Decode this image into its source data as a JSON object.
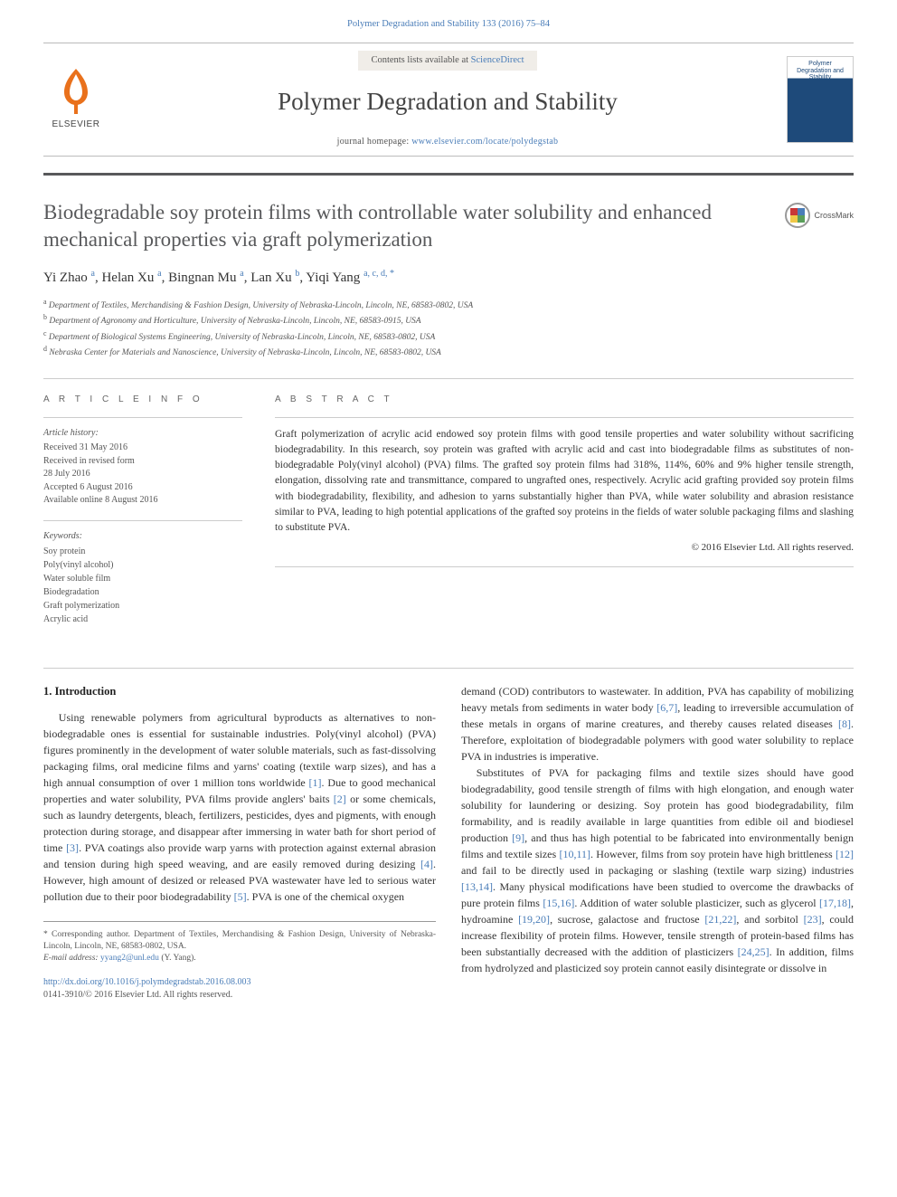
{
  "header": {
    "citation": "Polymer Degradation and Stability 133 (2016) 75–84",
    "contents_prefix": "Contents lists available at ",
    "contents_link": "ScienceDirect",
    "journal_title": "Polymer Degradation and Stability",
    "homepage_prefix": "journal homepage: ",
    "homepage_url": "www.elsevier.com/locate/polydegstab",
    "publisher_word": "ELSEVIER",
    "cover_text": "Polymer Degradation and Stability",
    "crossmark_label": "CrossMark"
  },
  "title": "Biodegradable soy protein films with controllable water solubility and enhanced mechanical properties via graft polymerization",
  "authors_line": "Yi Zhao <sup>a</sup>, Helan Xu <sup>a</sup>, Bingnan Mu <sup>a</sup>, Lan Xu <sup>b</sup>, Yiqi Yang <sup>a, c, d, *</sup>",
  "affiliations": [
    "<sup>a</sup> Department of Textiles, Merchandising & Fashion Design, University of Nebraska-Lincoln, Lincoln, NE, 68583-0802, USA",
    "<sup>b</sup> Department of Agronomy and Horticulture, University of Nebraska-Lincoln, Lincoln, NE, 68583-0915, USA",
    "<sup>c</sup> Department of Biological Systems Engineering, University of Nebraska-Lincoln, Lincoln, NE, 68583-0802, USA",
    "<sup>d</sup> Nebraska Center for Materials and Nanoscience, University of Nebraska-Lincoln, Lincoln, NE, 68583-0802, USA"
  ],
  "article_info": {
    "heading": "A R T I C L E  I N F O",
    "history_label": "Article history:",
    "history_lines": [
      "Received 31 May 2016",
      "Received in revised form",
      "28 July 2016",
      "Accepted 6 August 2016",
      "Available online 8 August 2016"
    ],
    "keywords_label": "Keywords:",
    "keywords": [
      "Soy protein",
      "Poly(vinyl alcohol)",
      "Water soluble film",
      "Biodegradation",
      "Graft polymerization",
      "Acrylic acid"
    ]
  },
  "abstract": {
    "heading": "A B S T R A C T",
    "text": "Graft polymerization of acrylic acid endowed soy protein films with good tensile properties and water solubility without sacrificing biodegradability. In this research, soy protein was grafted with acrylic acid and cast into biodegradable films as substitutes of non-biodegradable Poly(vinyl alcohol) (PVA) films. The grafted soy protein films had 318%, 114%, 60% and 9% higher tensile strength, elongation, dissolving rate and transmittance, compared to ungrafted ones, respectively. Acrylic acid grafting provided soy protein films with biodegradability, flexibility, and adhesion to yarns substantially higher than PVA, while water solubility and abrasion resistance similar to PVA, leading to high potential applications of the grafted soy proteins in the fields of water soluble packaging films and slashing to substitute PVA.",
    "copyright": "© 2016 Elsevier Ltd. All rights reserved."
  },
  "body": {
    "section_heading": "1. Introduction",
    "p1": "Using renewable polymers from agricultural byproducts as alternatives to non-biodegradable ones is essential for sustainable industries. Poly(vinyl alcohol) (PVA) figures prominently in the development of water soluble materials, such as fast-dissolving packaging films, oral medicine films and yarns' coating (textile warp sizes), and has a high annual consumption of over 1 million tons worldwide <span class=\"ref\">[1]</span>. Due to good mechanical properties and water solubility, PVA films provide anglers' baits <span class=\"ref\">[2]</span> or some chemicals, such as laundry detergents, bleach, fertilizers, pesticides, dyes and pigments, with enough protection during storage, and disappear after immersing in water bath for short period of time <span class=\"ref\">[3]</span>. PVA coatings also provide warp yarns with protection against external abrasion and tension during high speed weaving, and are easily removed during desizing <span class=\"ref\">[4]</span>. However, high amount of desized or released PVA wastewater have led to serious water pollution due to their poor biodegradability <span class=\"ref\">[5]</span>. PVA is one of the chemical oxygen",
    "p2": "demand (COD) contributors to wastewater. In addition, PVA has capability of mobilizing heavy metals from sediments in water body <span class=\"ref\">[6,7]</span>, leading to irreversible accumulation of these metals in organs of marine creatures, and thereby causes related diseases <span class=\"ref\">[8]</span>. Therefore, exploitation of biodegradable polymers with good water solubility to replace PVA in industries is imperative.",
    "p3": "Substitutes of PVA for packaging films and textile sizes should have good biodegradability, good tensile strength of films with high elongation, and enough water solubility for laundering or desizing. Soy protein has good biodegradability, film formability, and is readily available in large quantities from edible oil and biodiesel production <span class=\"ref\">[9]</span>, and thus has high potential to be fabricated into environmentally benign films and textile sizes <span class=\"ref\">[10,11]</span>. However, films from soy protein have high brittleness <span class=\"ref\">[12]</span> and fail to be directly used in packaging or slashing (textile warp sizing) industries <span class=\"ref\">[13,14]</span>. Many physical modifications have been studied to overcome the drawbacks of pure protein films <span class=\"ref\">[15,16]</span>. Addition of water soluble plasticizer, such as glycerol <span class=\"ref\">[17,18]</span>, hydroamine <span class=\"ref\">[19,20]</span>, sucrose, galactose and fructose <span class=\"ref\">[21,22]</span>, and sorbitol <span class=\"ref\">[23]</span>, could increase flexibility of protein films. However, tensile strength of protein-based films has been substantially decreased with the addition of plasticizers <span class=\"ref\">[24,25]</span>. In addition, films from hydrolyzed and plasticized soy protein cannot easily disintegrate or dissolve in"
  },
  "footer": {
    "corresponding_label": "* Corresponding author. Department of Textiles, Merchandising & Fashion Design, University of Nebraska-Lincoln, Lincoln, NE, 68583-0802, USA.",
    "email_label": "E-mail address: ",
    "email": "yyang2@unl.edu",
    "email_suffix": " (Y. Yang).",
    "doi_url": "http://dx.doi.org/10.1016/j.polymdegradstab.2016.08.003",
    "issn_line": "0141-3910/© 2016 Elsevier Ltd. All rights reserved."
  },
  "colors": {
    "accent": "#4a7db8",
    "rule": "#58595b",
    "elsevier": "#e9711c"
  }
}
